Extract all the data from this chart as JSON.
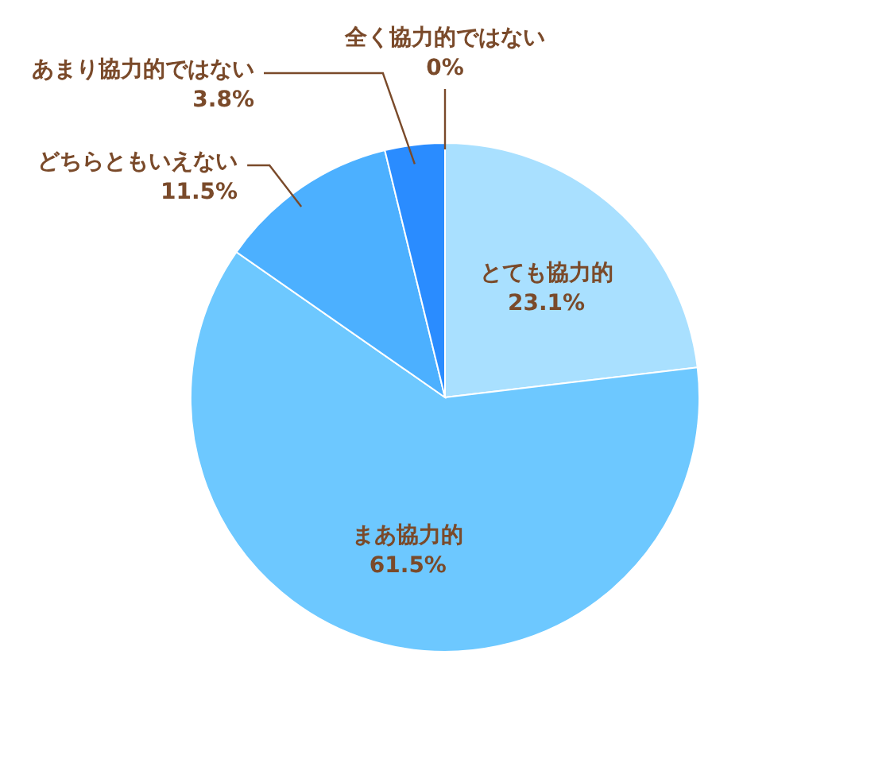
{
  "chart_data": {
    "type": "pie",
    "categories": [
      "とても協力的",
      "まあ協力的",
      "どちらともいえない",
      "あまり協力的ではない",
      "全く協力的ではない"
    ],
    "values": [
      23.1,
      61.5,
      11.5,
      3.8,
      0
    ],
    "value_labels": [
      "23.1%",
      "61.5%",
      "11.5%",
      "3.8%",
      "0%"
    ],
    "colors": [
      "#a9e0ff",
      "#6dc8ff",
      "#4cb0ff",
      "#2a8cff",
      "#1a6fe0"
    ]
  }
}
